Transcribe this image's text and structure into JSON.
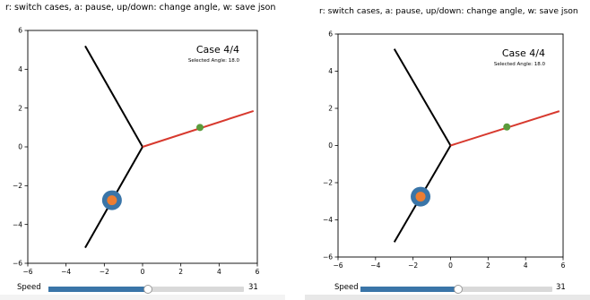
{
  "instructions": "r: switch cases, a: pause, up/down: change angle, w: save json",
  "panels": [
    {
      "case_label": "Case 4/4",
      "selected_angle_label": "Selected Angle: 18.0",
      "speed": {
        "label": "Speed",
        "value": "31",
        "fill_fraction": 0.508
      }
    },
    {
      "case_label": "Case 4/4",
      "selected_angle_label": "Selected Angle: 18.0",
      "speed": {
        "label": "Speed",
        "value": "31",
        "fill_fraction": 0.508
      }
    }
  ],
  "chart_data": {
    "type": "line",
    "xlim": [
      -6,
      6
    ],
    "ylim": [
      -6,
      6
    ],
    "x_ticks": [
      "−6",
      "−4",
      "−2",
      "0",
      "2",
      "4",
      "6"
    ],
    "y_ticks": [
      "6",
      "4",
      "2",
      "0",
      "−2",
      "−4",
      "−6"
    ],
    "grid": false,
    "series": [
      {
        "color": "#000000",
        "x": [
          0,
          -3.0
        ],
        "y": [
          0,
          5.2
        ]
      },
      {
        "color": "#000000",
        "x": [
          0,
          -3.0
        ],
        "y": [
          0,
          -5.2
        ]
      },
      {
        "color": "#d7392e",
        "x": [
          0,
          5.8
        ],
        "y": [
          0,
          1.85
        ]
      }
    ],
    "markers": [
      {
        "color": "#3a75a8",
        "x": -1.6,
        "y": -2.75,
        "size": "large"
      },
      {
        "color": "#ed7d31",
        "x": -1.6,
        "y": -2.75,
        "size": "medium"
      },
      {
        "color": "#5b9b3b",
        "x": 3.0,
        "y": 1.0,
        "size": "small"
      }
    ]
  }
}
